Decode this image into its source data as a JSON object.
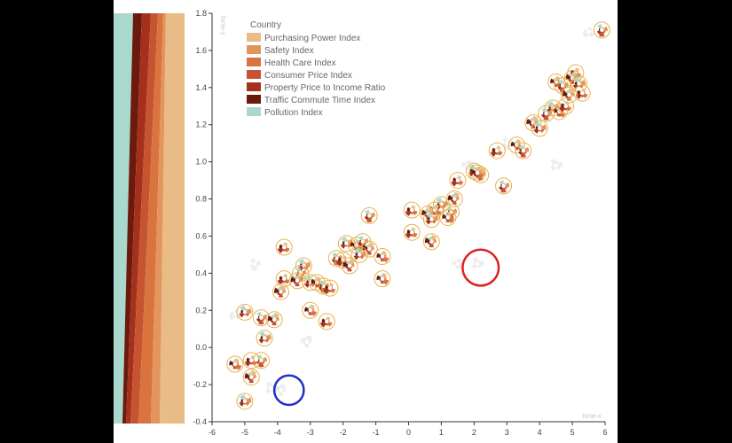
{
  "chart_data": {
    "type": "scatter",
    "title": "",
    "xlabel": "tsne-x",
    "ylabel": "tsne-y",
    "xlim": [
      -6,
      6
    ],
    "ylim": [
      -0.4,
      1.8
    ],
    "x_ticks": [
      -6,
      -5,
      -4,
      -3,
      -2,
      -1,
      0,
      1,
      2,
      3,
      4,
      5,
      6
    ],
    "y_ticks": [
      -0.4,
      -0.2,
      0.0,
      0.2,
      0.4,
      0.6,
      0.8,
      1.0,
      1.2,
      1.4,
      1.6,
      1.8
    ],
    "x_tick_labels": [
      "-6",
      "-5",
      "-4",
      "-3",
      "-2",
      "-1",
      "0",
      "1",
      "2",
      "3",
      "4",
      "5",
      "6"
    ],
    "y_tick_labels": [
      "-0.4",
      "-0.2",
      "0.0",
      "0.2",
      "0.4",
      "0.6",
      "0.8",
      "1.0",
      "1.2",
      "1.4",
      "1.6",
      "1.8"
    ],
    "legend": {
      "title": "Country",
      "entries": [
        {
          "label": "Purchasing Power Index",
          "color": "#e9bb86"
        },
        {
          "label": "Safety Index",
          "color": "#e3955d"
        },
        {
          "label": "Health Care Index",
          "color": "#d9743f"
        },
        {
          "label": "Consumer Price Index",
          "color": "#c65430"
        },
        {
          "label": "Property Price to Income Ratio",
          "color": "#a5311d"
        },
        {
          "label": "Traffic Commute Time Index",
          "color": "#6b1a0d"
        },
        {
          "label": "Pollution Index",
          "color": "#a9d8cc"
        }
      ]
    },
    "points": [
      {
        "x": 5.9,
        "y": 1.71
      },
      {
        "x": 5.1,
        "y": 1.48
      },
      {
        "x": 5.0,
        "y": 1.45
      },
      {
        "x": 5.2,
        "y": 1.42
      },
      {
        "x": 4.5,
        "y": 1.43
      },
      {
        "x": 4.7,
        "y": 1.41
      },
      {
        "x": 5.3,
        "y": 1.37
      },
      {
        "x": 4.9,
        "y": 1.36
      },
      {
        "x": 4.4,
        "y": 1.29
      },
      {
        "x": 4.6,
        "y": 1.27
      },
      {
        "x": 4.2,
        "y": 1.26
      },
      {
        "x": 4.8,
        "y": 1.3
      },
      {
        "x": 3.8,
        "y": 1.21
      },
      {
        "x": 4.0,
        "y": 1.18
      },
      {
        "x": 3.3,
        "y": 1.09
      },
      {
        "x": 3.5,
        "y": 1.06
      },
      {
        "x": 2.7,
        "y": 1.06
      },
      {
        "x": 2.2,
        "y": 0.93
      },
      {
        "x": 2.0,
        "y": 0.95
      },
      {
        "x": 2.1,
        "y": 0.94
      },
      {
        "x": 2.9,
        "y": 0.87
      },
      {
        "x": 1.5,
        "y": 0.9
      },
      {
        "x": 1.4,
        "y": 0.8
      },
      {
        "x": 1.0,
        "y": 0.77
      },
      {
        "x": 0.8,
        "y": 0.74
      },
      {
        "x": 1.3,
        "y": 0.73
      },
      {
        "x": 0.1,
        "y": 0.74
      },
      {
        "x": 0.6,
        "y": 0.72
      },
      {
        "x": 0.7,
        "y": 0.69
      },
      {
        "x": 1.2,
        "y": 0.7
      },
      {
        "x": -1.2,
        "y": 0.71
      },
      {
        "x": 0.1,
        "y": 0.62
      },
      {
        "x": 0.7,
        "y": 0.57
      },
      {
        "x": -1.9,
        "y": 0.56
      },
      {
        "x": -1.6,
        "y": 0.55
      },
      {
        "x": -1.4,
        "y": 0.57
      },
      {
        "x": -3.8,
        "y": 0.54
      },
      {
        "x": -1.2,
        "y": 0.53
      },
      {
        "x": -1.5,
        "y": 0.5
      },
      {
        "x": -0.8,
        "y": 0.49
      },
      {
        "x": -2.2,
        "y": 0.48
      },
      {
        "x": -2.0,
        "y": 0.47
      },
      {
        "x": -1.8,
        "y": 0.44
      },
      {
        "x": -3.2,
        "y": 0.44
      },
      {
        "x": -0.8,
        "y": 0.37
      },
      {
        "x": -3.3,
        "y": 0.4
      },
      {
        "x": -3.8,
        "y": 0.37
      },
      {
        "x": -3.4,
        "y": 0.36
      },
      {
        "x": -3.0,
        "y": 0.35
      },
      {
        "x": -2.8,
        "y": 0.35
      },
      {
        "x": -2.6,
        "y": 0.33
      },
      {
        "x": -2.4,
        "y": 0.32
      },
      {
        "x": -3.9,
        "y": 0.3
      },
      {
        "x": -5.0,
        "y": 0.19
      },
      {
        "x": -3.0,
        "y": 0.2
      },
      {
        "x": -4.5,
        "y": 0.16
      },
      {
        "x": -2.5,
        "y": 0.14
      },
      {
        "x": -4.1,
        "y": 0.15
      },
      {
        "x": -4.4,
        "y": 0.05
      },
      {
        "x": -5.3,
        "y": -0.09
      },
      {
        "x": -4.5,
        "y": -0.07
      },
      {
        "x": -4.8,
        "y": -0.07
      },
      {
        "x": -4.8,
        "y": -0.16
      },
      {
        "x": -5.0,
        "y": -0.29
      }
    ],
    "faded_points": [
      {
        "x": 2.1,
        "y": 0.45
      },
      {
        "x": 1.5,
        "y": 0.45
      },
      {
        "x": -4.7,
        "y": 0.45
      },
      {
        "x": -5.3,
        "y": 0.18
      },
      {
        "x": -3.1,
        "y": 0.03
      },
      {
        "x": 4.5,
        "y": 0.98
      },
      {
        "x": 1.8,
        "y": 0.98
      },
      {
        "x": 3.0,
        "y": 1.1
      },
      {
        "x": 5.5,
        "y": 1.7
      },
      {
        "x": -3.9,
        "y": -0.23
      },
      {
        "x": -4.2,
        "y": -0.22
      }
    ],
    "annotations": [
      {
        "shape": "circle",
        "color": "#e02020",
        "cx": 2.2,
        "cy": 0.43,
        "radius_x": 0.55
      },
      {
        "shape": "circle",
        "color": "#2030c8",
        "cx": -3.65,
        "cy": -0.23,
        "radius_x": 0.45
      }
    ],
    "ribbon_colors": [
      "#e9bb86",
      "#e3955d",
      "#d9743f",
      "#c65430",
      "#a5311d",
      "#6b1a0d",
      "#a9d8cc"
    ]
  }
}
